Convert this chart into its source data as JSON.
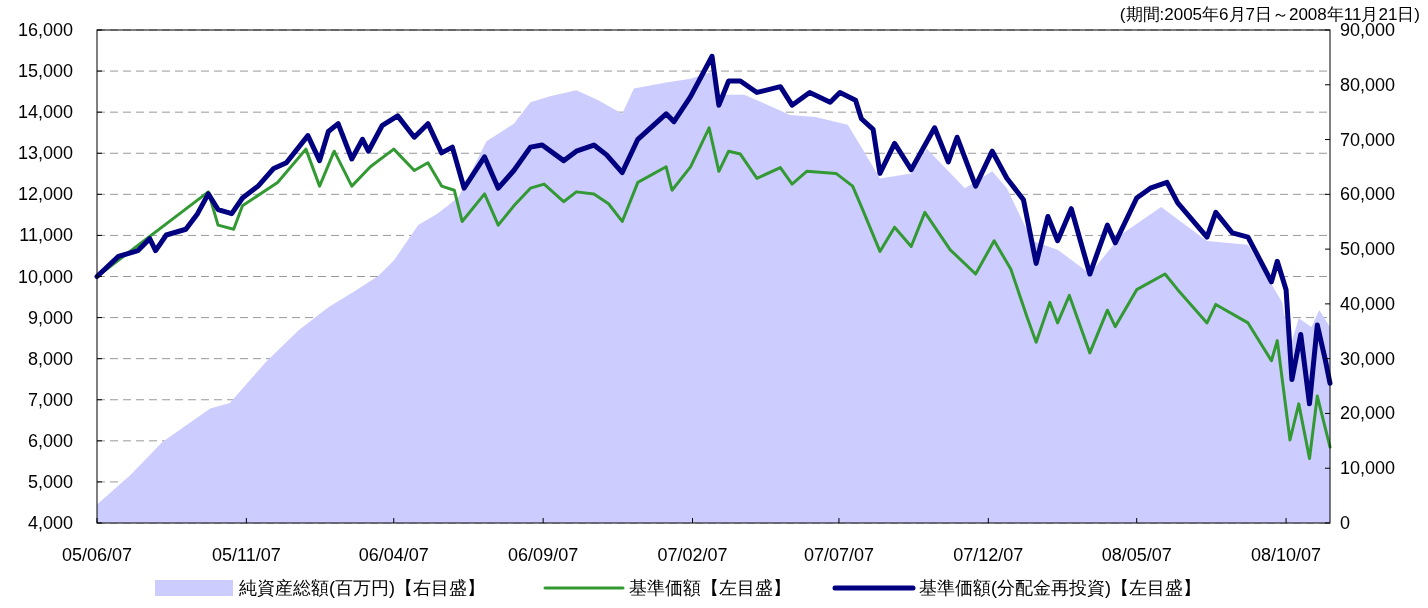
{
  "chart_data": {
    "type": "line",
    "annotations": [
      "(期間:2005年6月7日～2008年11月21日)"
    ],
    "xlim": [
      "2005-06-07",
      "2008-11-21"
    ],
    "xticks": [
      {
        "value": "2005-06-07",
        "label": "05/06/07"
      },
      {
        "value": "2005-11-07",
        "label": "05/11/07"
      },
      {
        "value": "2006-04-07",
        "label": "06/04/07"
      },
      {
        "value": "2006-09-07",
        "label": "06/09/07"
      },
      {
        "value": "2007-02-07",
        "label": "07/02/07"
      },
      {
        "value": "2007-07-07",
        "label": "07/07/07"
      },
      {
        "value": "2007-12-07",
        "label": "07/12/07"
      },
      {
        "value": "2008-05-07",
        "label": "08/05/07"
      },
      {
        "value": "2008-10-07",
        "label": "08/10/07"
      }
    ],
    "ylim": [
      4000,
      16000
    ],
    "yticks": [
      {
        "value": 4000,
        "label": "4,000"
      },
      {
        "value": 5000,
        "label": "5,000"
      },
      {
        "value": 6000,
        "label": "6,000"
      },
      {
        "value": 7000,
        "label": "7,000"
      },
      {
        "value": 8000,
        "label": "8,000"
      },
      {
        "value": 9000,
        "label": "9,000"
      },
      {
        "value": 10000,
        "label": "10,000"
      },
      {
        "value": 11000,
        "label": "11,000"
      },
      {
        "value": 12000,
        "label": "12,000"
      },
      {
        "value": 13000,
        "label": "13,000"
      },
      {
        "value": 14000,
        "label": "14,000"
      },
      {
        "value": 15000,
        "label": "15,000"
      },
      {
        "value": 16000,
        "label": "16,000"
      }
    ],
    "y2lim": [
      0,
      90000
    ],
    "y2ticks": [
      0,
      {
        "value": 10000,
        "label": "10,000"
      },
      {
        "value": 20000,
        "label": "20,000"
      },
      {
        "value": 30000,
        "label": "30,000"
      },
      {
        "value": 40000,
        "label": "40,000"
      },
      {
        "value": 50000,
        "label": "50,000"
      },
      {
        "value": 60000,
        "label": "60,000"
      },
      {
        "value": 70000,
        "label": "70,000"
      },
      {
        "value": 80000,
        "label": "80,000"
      },
      {
        "value": 90000,
        "label": "90,000"
      }
    ],
    "grid": "y",
    "legend": "bottom",
    "series": [
      {
        "name": "純資産総額(百万円)【右目盛】",
        "type": "area",
        "axis": "y2",
        "color": "#ccccff",
        "x": [
          "2005-06-07",
          "2005-07-11",
          "2005-08-13",
          "2005-10-01",
          "2005-10-21",
          "2005-11-27",
          "2005-12-30",
          "2006-01-30",
          "2006-02-25",
          "2006-03-22",
          "2006-04-07",
          "2006-05-02",
          "2006-05-22",
          "2006-06-12",
          "2006-07-11",
          "2006-08-08",
          "2006-08-25",
          "2006-09-14",
          "2006-10-11",
          "2006-11-02",
          "2006-11-27",
          "2006-12-09",
          "2007-01-11",
          "2007-02-05",
          "2007-02-26",
          "2007-03-06",
          "2007-04-01",
          "2007-05-18",
          "2007-06-13",
          "2007-07-16",
          "2007-07-30",
          "2007-08-18",
          "2007-09-19",
          "2007-10-05",
          "2007-11-13",
          "2007-12-11",
          "2007-12-26",
          "2008-01-21",
          "2008-02-16",
          "2008-03-20",
          "2008-04-23",
          "2008-06-01",
          "2008-07-18",
          "2008-08-29",
          "2008-10-03",
          "2008-10-11",
          "2008-10-20",
          "2008-11-02",
          "2008-11-10",
          "2008-11-21"
        ],
        "values": [
          3400,
          8700,
          14800,
          20900,
          21900,
          29400,
          35100,
          39400,
          42200,
          45100,
          47900,
          54400,
          56500,
          59400,
          69700,
          72900,
          76800,
          77900,
          79000,
          77200,
          74700,
          79300,
          80400,
          81100,
          82300,
          78200,
          78200,
          74500,
          74100,
          72700,
          68600,
          62900,
          63800,
          68300,
          61100,
          64200,
          61100,
          51500,
          49900,
          45500,
          52900,
          57700,
          51500,
          50800,
          40300,
          32100,
          37400,
          35800,
          38900,
          35800
        ]
      },
      {
        "name": "基準価額【左目盛】",
        "axis": "y",
        "color": "#339933",
        "x": [
          "2005-06-07",
          "2005-09-29",
          "2005-10-09",
          "2005-10-25",
          "2005-11-03",
          "2005-12-09",
          "2006-01-07",
          "2006-01-21",
          "2006-02-05",
          "2006-02-23",
          "2006-03-14",
          "2006-04-07",
          "2006-04-28",
          "2006-05-12",
          "2006-05-26",
          "2006-06-08",
          "2006-06-16",
          "2006-07-09",
          "2006-07-23",
          "2006-08-08",
          "2006-08-25",
          "2006-09-08",
          "2006-09-28",
          "2006-10-11",
          "2006-10-29",
          "2006-11-13",
          "2006-11-27",
          "2006-12-13",
          "2007-01-11",
          "2007-01-17",
          "2007-02-05",
          "2007-02-24",
          "2007-03-06",
          "2007-03-16",
          "2007-03-28",
          "2007-04-14",
          "2007-05-08",
          "2007-05-20",
          "2007-06-04",
          "2007-07-04",
          "2007-07-21",
          "2007-07-30",
          "2007-08-18",
          "2007-09-02",
          "2007-09-19",
          "2007-10-03",
          "2007-10-29",
          "2007-11-24",
          "2007-12-13",
          "2007-12-30",
          "2008-01-16",
          "2008-01-25",
          "2008-02-08",
          "2008-02-16",
          "2008-02-28",
          "2008-03-20",
          "2008-04-07",
          "2008-04-15",
          "2008-05-07",
          "2008-06-05",
          "2008-06-18",
          "2008-07-18",
          "2008-07-27",
          "2008-08-29",
          "2008-09-22",
          "2008-09-28",
          "2008-10-11",
          "2008-10-20",
          "2008-10-31",
          "2008-11-08",
          "2008-11-21"
        ],
        "values": [
          10000,
          12060,
          11250,
          11150,
          11720,
          12290,
          13100,
          12200,
          13050,
          12200,
          12670,
          13100,
          12580,
          12770,
          12200,
          12100,
          11340,
          12010,
          11250,
          11720,
          12150,
          12250,
          11820,
          12060,
          12010,
          11770,
          11340,
          12290,
          12670,
          12100,
          12670,
          13620,
          12560,
          13050,
          12980,
          12390,
          12650,
          12250,
          12560,
          12510,
          12200,
          11700,
          10610,
          11200,
          10730,
          11560,
          10650,
          10060,
          10870,
          10180,
          8990,
          8400,
          9370,
          8870,
          9540,
          8140,
          9180,
          8780,
          9680,
          10060,
          9680,
          8870,
          9320,
          8870,
          7950,
          8440,
          6020,
          6900,
          5570,
          7090,
          5850
        ]
      },
      {
        "name": "基準価額(分配金再投資)【左目盛】",
        "axis": "y",
        "color": "#000080",
        "x": [
          "2005-06-07",
          "2005-06-29",
          "2005-07-19",
          "2005-07-31",
          "2005-08-06",
          "2005-08-17",
          "2005-09-06",
          "2005-09-18",
          "2005-09-29",
          "2005-10-09",
          "2005-10-23",
          "2005-11-03",
          "2005-11-19",
          "2005-12-05",
          "2005-12-18",
          "2006-01-09",
          "2006-01-21",
          "2006-01-30",
          "2006-02-09",
          "2006-02-23",
          "2006-03-06",
          "2006-03-12",
          "2006-03-26",
          "2006-04-11",
          "2006-04-28",
          "2006-05-12",
          "2006-05-26",
          "2006-06-06",
          "2006-06-18",
          "2006-07-09",
          "2006-07-23",
          "2006-08-08",
          "2006-08-25",
          "2006-09-06",
          "2006-09-28",
          "2006-10-11",
          "2006-10-29",
          "2006-11-11",
          "2006-11-27",
          "2006-12-13",
          "2007-01-11",
          "2007-01-19",
          "2007-02-05",
          "2007-02-27",
          "2007-03-06",
          "2007-03-16",
          "2007-03-28",
          "2007-04-14",
          "2007-05-08",
          "2007-05-20",
          "2007-06-07",
          "2007-06-28",
          "2007-07-08",
          "2007-07-24",
          "2007-07-30",
          "2007-08-11",
          "2007-08-18",
          "2007-09-02",
          "2007-09-19",
          "2007-10-13",
          "2007-10-27",
          "2007-11-05",
          "2007-11-24",
          "2007-12-11",
          "2007-12-26",
          "2008-01-12",
          "2008-01-25",
          "2008-02-06",
          "2008-02-16",
          "2008-03-01",
          "2008-03-20",
          "2008-04-07",
          "2008-04-15",
          "2008-05-07",
          "2008-05-21",
          "2008-06-07",
          "2008-06-18",
          "2008-07-18",
          "2008-07-27",
          "2008-08-13",
          "2008-08-29",
          "2008-09-22",
          "2008-09-28",
          "2008-10-07",
          "2008-10-13",
          "2008-10-22",
          "2008-10-31",
          "2008-11-08",
          "2008-11-16",
          "2008-11-21"
        ],
        "values": [
          10000,
          10490,
          10630,
          10920,
          10630,
          11010,
          11150,
          11530,
          12010,
          11630,
          11530,
          11910,
          12200,
          12630,
          12770,
          13430,
          12820,
          13530,
          13720,
          12860,
          13340,
          13050,
          13670,
          13910,
          13390,
          13720,
          13010,
          13150,
          12150,
          12910,
          12150,
          12580,
          13150,
          13200,
          12820,
          13050,
          13200,
          12960,
          12530,
          13340,
          13960,
          13770,
          14380,
          15360,
          14170,
          14760,
          14760,
          14480,
          14620,
          14170,
          14480,
          14240,
          14480,
          14290,
          13840,
          13580,
          12510,
          13240,
          12600,
          13620,
          12790,
          13390,
          12200,
          13050,
          12390,
          11870,
          10320,
          11460,
          10870,
          11650,
          10060,
          11250,
          10820,
          11910,
          12150,
          12290,
          11790,
          10960,
          11560,
          11060,
          10960,
          9870,
          10370,
          9680,
          7490,
          8590,
          6900,
          8820,
          7990,
          7400
        ]
      }
    ]
  }
}
